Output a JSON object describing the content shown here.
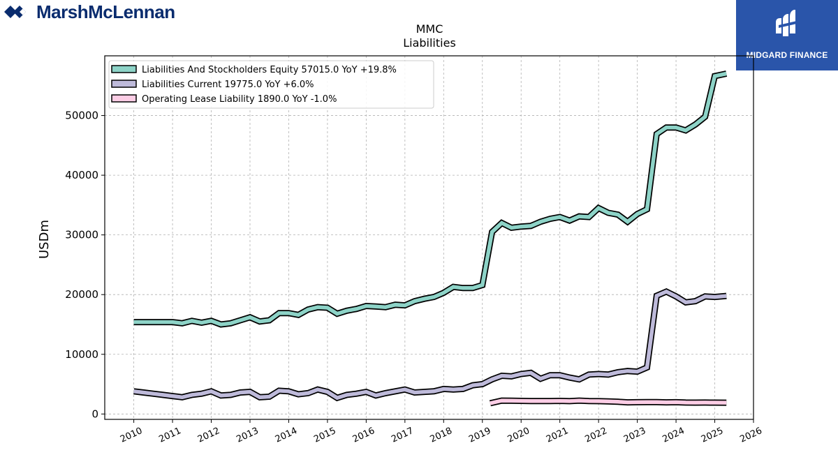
{
  "brand": {
    "name": "MarshMcLennan",
    "color": "#0a2c6e",
    "logo_icon": "marsh-mclennan-logo"
  },
  "badge": {
    "text": "MIDGARD FINANCE",
    "color": "#2a55aa",
    "logo_icon": "midgard-logo"
  },
  "chart_data": {
    "type": "line",
    "title": "MMC",
    "subtitle": "Liabilities",
    "xlabel": "",
    "ylabel": "USDm",
    "xlim": [
      2009.25,
      2026.0
    ],
    "ylim": [
      -900,
      60000
    ],
    "x_ticks": [
      2010,
      2011,
      2012,
      2013,
      2014,
      2015,
      2016,
      2017,
      2018,
      2019,
      2020,
      2021,
      2022,
      2023,
      2024,
      2025,
      2026
    ],
    "y_ticks": [
      0,
      10000,
      20000,
      30000,
      40000,
      50000
    ],
    "grid": true,
    "legend_position": "top-left",
    "series": [
      {
        "name": "Liabilities And Stockholders Equity  57015.0 YoY +19.8%",
        "color": "#8dd3c7",
        "points": [
          [
            2010.0,
            15400
          ],
          [
            2010.25,
            15400
          ],
          [
            2010.5,
            15400
          ],
          [
            2010.75,
            15400
          ],
          [
            2011.0,
            15400
          ],
          [
            2011.25,
            15200
          ],
          [
            2011.5,
            15600
          ],
          [
            2011.75,
            15300
          ],
          [
            2012.0,
            15600
          ],
          [
            2012.25,
            15000
          ],
          [
            2012.5,
            15200
          ],
          [
            2012.75,
            15700
          ],
          [
            2013.0,
            16200
          ],
          [
            2013.25,
            15500
          ],
          [
            2013.5,
            15700
          ],
          [
            2013.75,
            16900
          ],
          [
            2014.0,
            16900
          ],
          [
            2014.25,
            16600
          ],
          [
            2014.5,
            17500
          ],
          [
            2014.75,
            17900
          ],
          [
            2015.0,
            17800
          ],
          [
            2015.25,
            16800
          ],
          [
            2015.5,
            17300
          ],
          [
            2015.75,
            17600
          ],
          [
            2016.0,
            18100
          ],
          [
            2016.25,
            18000
          ],
          [
            2016.5,
            17900
          ],
          [
            2016.75,
            18300
          ],
          [
            2017.0,
            18200
          ],
          [
            2017.25,
            18900
          ],
          [
            2017.5,
            19300
          ],
          [
            2017.75,
            19600
          ],
          [
            2018.0,
            20300
          ],
          [
            2018.25,
            21300
          ],
          [
            2018.5,
            21100
          ],
          [
            2018.75,
            21100
          ],
          [
            2019.0,
            21600
          ],
          [
            2019.25,
            30500
          ],
          [
            2019.5,
            32000
          ],
          [
            2019.75,
            31200
          ],
          [
            2020.0,
            31400
          ],
          [
            2020.25,
            31500
          ],
          [
            2020.5,
            32200
          ],
          [
            2020.75,
            32700
          ],
          [
            2021.0,
            33000
          ],
          [
            2021.25,
            32400
          ],
          [
            2021.5,
            33100
          ],
          [
            2021.75,
            33000
          ],
          [
            2022.0,
            34500
          ],
          [
            2022.25,
            33700
          ],
          [
            2022.5,
            33400
          ],
          [
            2022.75,
            32200
          ],
          [
            2023.0,
            33500
          ],
          [
            2023.25,
            34300
          ],
          [
            2023.5,
            46900
          ],
          [
            2023.75,
            48000
          ],
          [
            2024.0,
            48000
          ],
          [
            2024.25,
            47500
          ],
          [
            2024.5,
            48500
          ],
          [
            2024.75,
            49800
          ],
          [
            2025.0,
            56600
          ],
          [
            2025.3,
            57015
          ]
        ]
      },
      {
        "name": "Liabilities Current  19775.0 YoY +6.0%",
        "color": "#bebada",
        "points": [
          [
            2010.0,
            3800
          ],
          [
            2010.25,
            3600
          ],
          [
            2010.5,
            3400
          ],
          [
            2010.75,
            3200
          ],
          [
            2011.0,
            3000
          ],
          [
            2011.25,
            2800
          ],
          [
            2011.5,
            3200
          ],
          [
            2011.75,
            3400
          ],
          [
            2012.0,
            3800
          ],
          [
            2012.25,
            3100
          ],
          [
            2012.5,
            3200
          ],
          [
            2012.75,
            3600
          ],
          [
            2013.0,
            3700
          ],
          [
            2013.25,
            2800
          ],
          [
            2013.5,
            2900
          ],
          [
            2013.75,
            3900
          ],
          [
            2014.0,
            3800
          ],
          [
            2014.25,
            3300
          ],
          [
            2014.5,
            3500
          ],
          [
            2014.75,
            4100
          ],
          [
            2015.0,
            3700
          ],
          [
            2015.25,
            2700
          ],
          [
            2015.5,
            3200
          ],
          [
            2015.75,
            3400
          ],
          [
            2016.0,
            3700
          ],
          [
            2016.25,
            3100
          ],
          [
            2016.5,
            3500
          ],
          [
            2016.75,
            3800
          ],
          [
            2017.0,
            4100
          ],
          [
            2017.25,
            3600
          ],
          [
            2017.5,
            3700
          ],
          [
            2017.75,
            3800
          ],
          [
            2018.0,
            4200
          ],
          [
            2018.25,
            4100
          ],
          [
            2018.5,
            4200
          ],
          [
            2018.75,
            4800
          ],
          [
            2019.0,
            5000
          ],
          [
            2019.25,
            5800
          ],
          [
            2019.5,
            6400
          ],
          [
            2019.75,
            6300
          ],
          [
            2020.0,
            6700
          ],
          [
            2020.25,
            6900
          ],
          [
            2020.5,
            5900
          ],
          [
            2020.75,
            6500
          ],
          [
            2021.0,
            6500
          ],
          [
            2021.25,
            6100
          ],
          [
            2021.5,
            5800
          ],
          [
            2021.75,
            6600
          ],
          [
            2022.0,
            6700
          ],
          [
            2022.25,
            6600
          ],
          [
            2022.5,
            7000
          ],
          [
            2022.75,
            7200
          ],
          [
            2023.0,
            7100
          ],
          [
            2023.25,
            7800
          ],
          [
            2023.5,
            19800
          ],
          [
            2023.75,
            20500
          ],
          [
            2024.0,
            19700
          ],
          [
            2024.25,
            18700
          ],
          [
            2024.5,
            18900
          ],
          [
            2024.75,
            19700
          ],
          [
            2025.0,
            19600
          ],
          [
            2025.3,
            19775
          ]
        ]
      },
      {
        "name": "Operating Lease Liability  1890.0 YoY -1.0%",
        "color": "#fccde5",
        "points": [
          [
            2019.2,
            1800
          ],
          [
            2019.5,
            2250
          ],
          [
            2019.75,
            2230
          ],
          [
            2020.0,
            2200
          ],
          [
            2020.25,
            2180
          ],
          [
            2020.5,
            2180
          ],
          [
            2020.75,
            2180
          ],
          [
            2021.0,
            2200
          ],
          [
            2021.25,
            2150
          ],
          [
            2021.5,
            2250
          ],
          [
            2021.75,
            2180
          ],
          [
            2022.0,
            2150
          ],
          [
            2022.25,
            2120
          ],
          [
            2022.5,
            2050
          ],
          [
            2022.75,
            1950
          ],
          [
            2023.0,
            1980
          ],
          [
            2023.25,
            2000
          ],
          [
            2023.5,
            2000
          ],
          [
            2023.75,
            1950
          ],
          [
            2024.0,
            1980
          ],
          [
            2024.25,
            1920
          ],
          [
            2024.5,
            1910
          ],
          [
            2024.75,
            1920
          ],
          [
            2025.0,
            1910
          ],
          [
            2025.3,
            1890
          ]
        ]
      }
    ]
  }
}
